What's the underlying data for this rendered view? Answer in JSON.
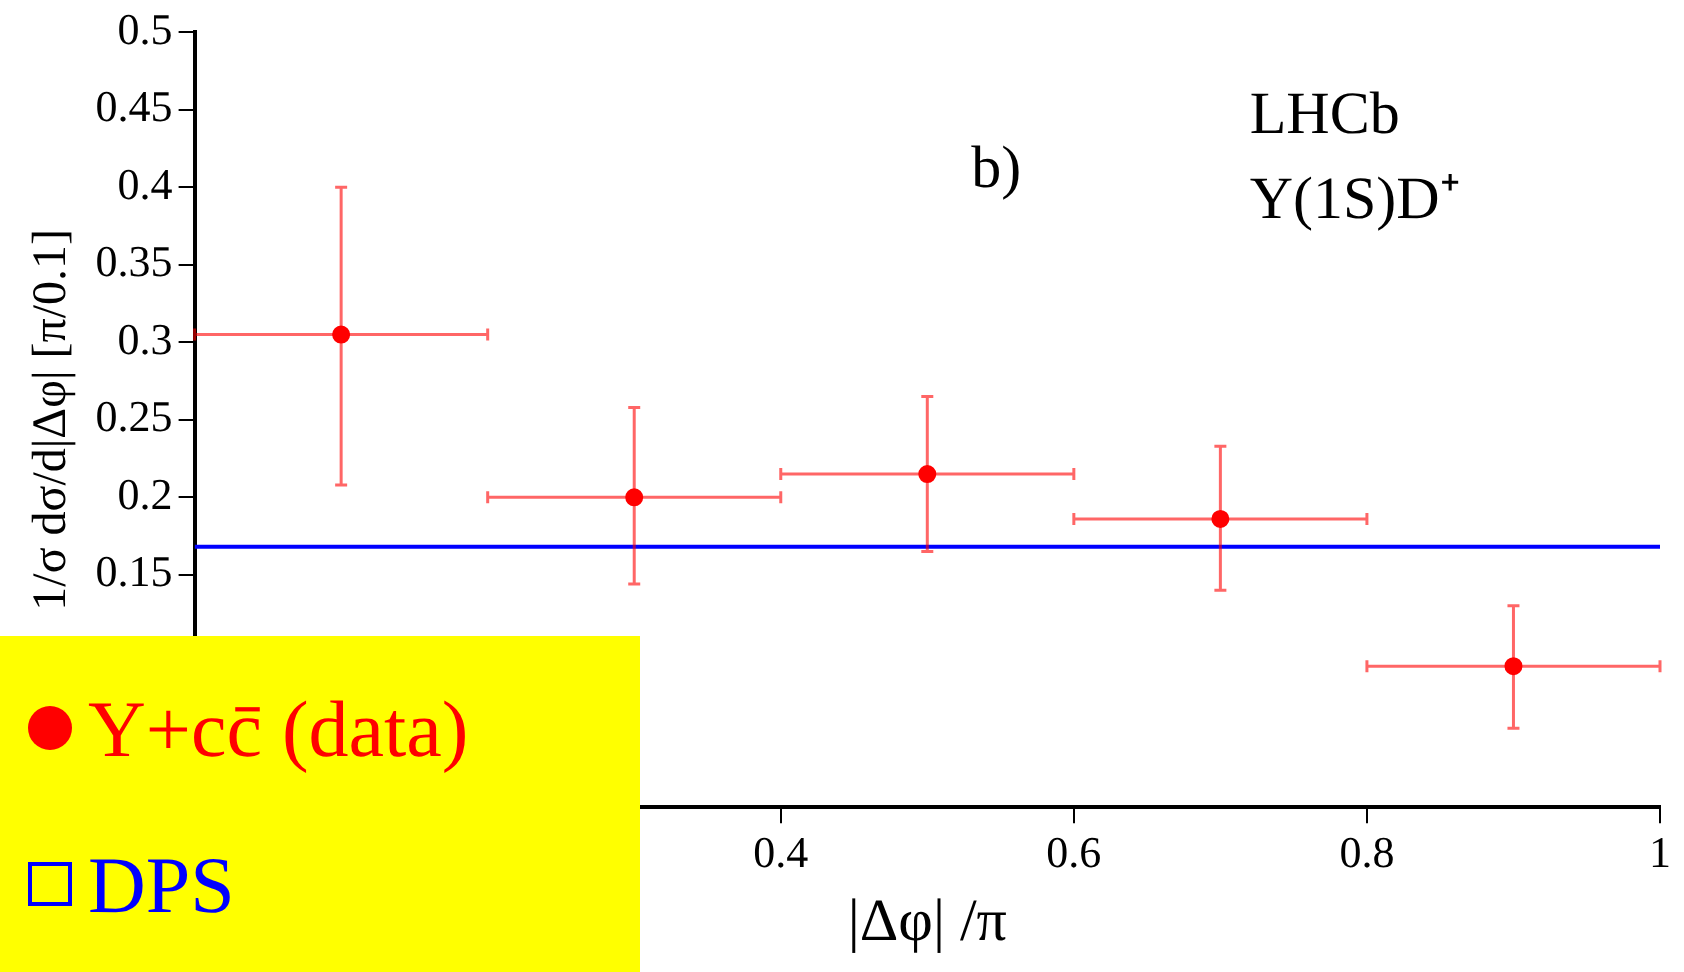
{
  "chart_data": {
    "type": "scatter",
    "xlabel": "|Δφ| /π",
    "ylabel": "1/σ dσ/d|Δφ| [π/0.1]",
    "annotations": [
      "b)",
      "LHCb",
      "Υ(1S)D⁺"
    ],
    "xlim": [
      0,
      1
    ],
    "xticks": [
      0.4,
      0.6,
      0.8,
      1
    ],
    "ylim": [
      0,
      0.5
    ],
    "yticks": [
      0.15,
      0.2,
      0.25,
      0.3,
      0.35,
      0.4,
      0.45,
      0.5
    ],
    "grid": false,
    "legend": "bottom left",
    "marker": "circle",
    "series": [
      {
        "name": "Υ+cc̄ (data)",
        "color": "#ff0000",
        "x": [
          0.1,
          0.3,
          0.5,
          0.7,
          0.9
        ],
        "values": [
          0.305,
          0.2,
          0.215,
          0.186,
          0.091
        ],
        "errors": [
          [
            0.208,
            0.4
          ],
          [
            0.144,
            0.258
          ],
          [
            0.165,
            0.265
          ],
          [
            0.14,
            0.233
          ],
          [
            0.051,
            0.13
          ]
        ],
        "xerrors": [
          0.1,
          0.1,
          0.1,
          0.1,
          0.1
        ]
      },
      {
        "name": "DPS",
        "type": "line",
        "color": "#0000ff",
        "marker": "none",
        "x": [
          0,
          1
        ],
        "values": [
          0.168,
          0.168
        ]
      }
    ]
  }
}
